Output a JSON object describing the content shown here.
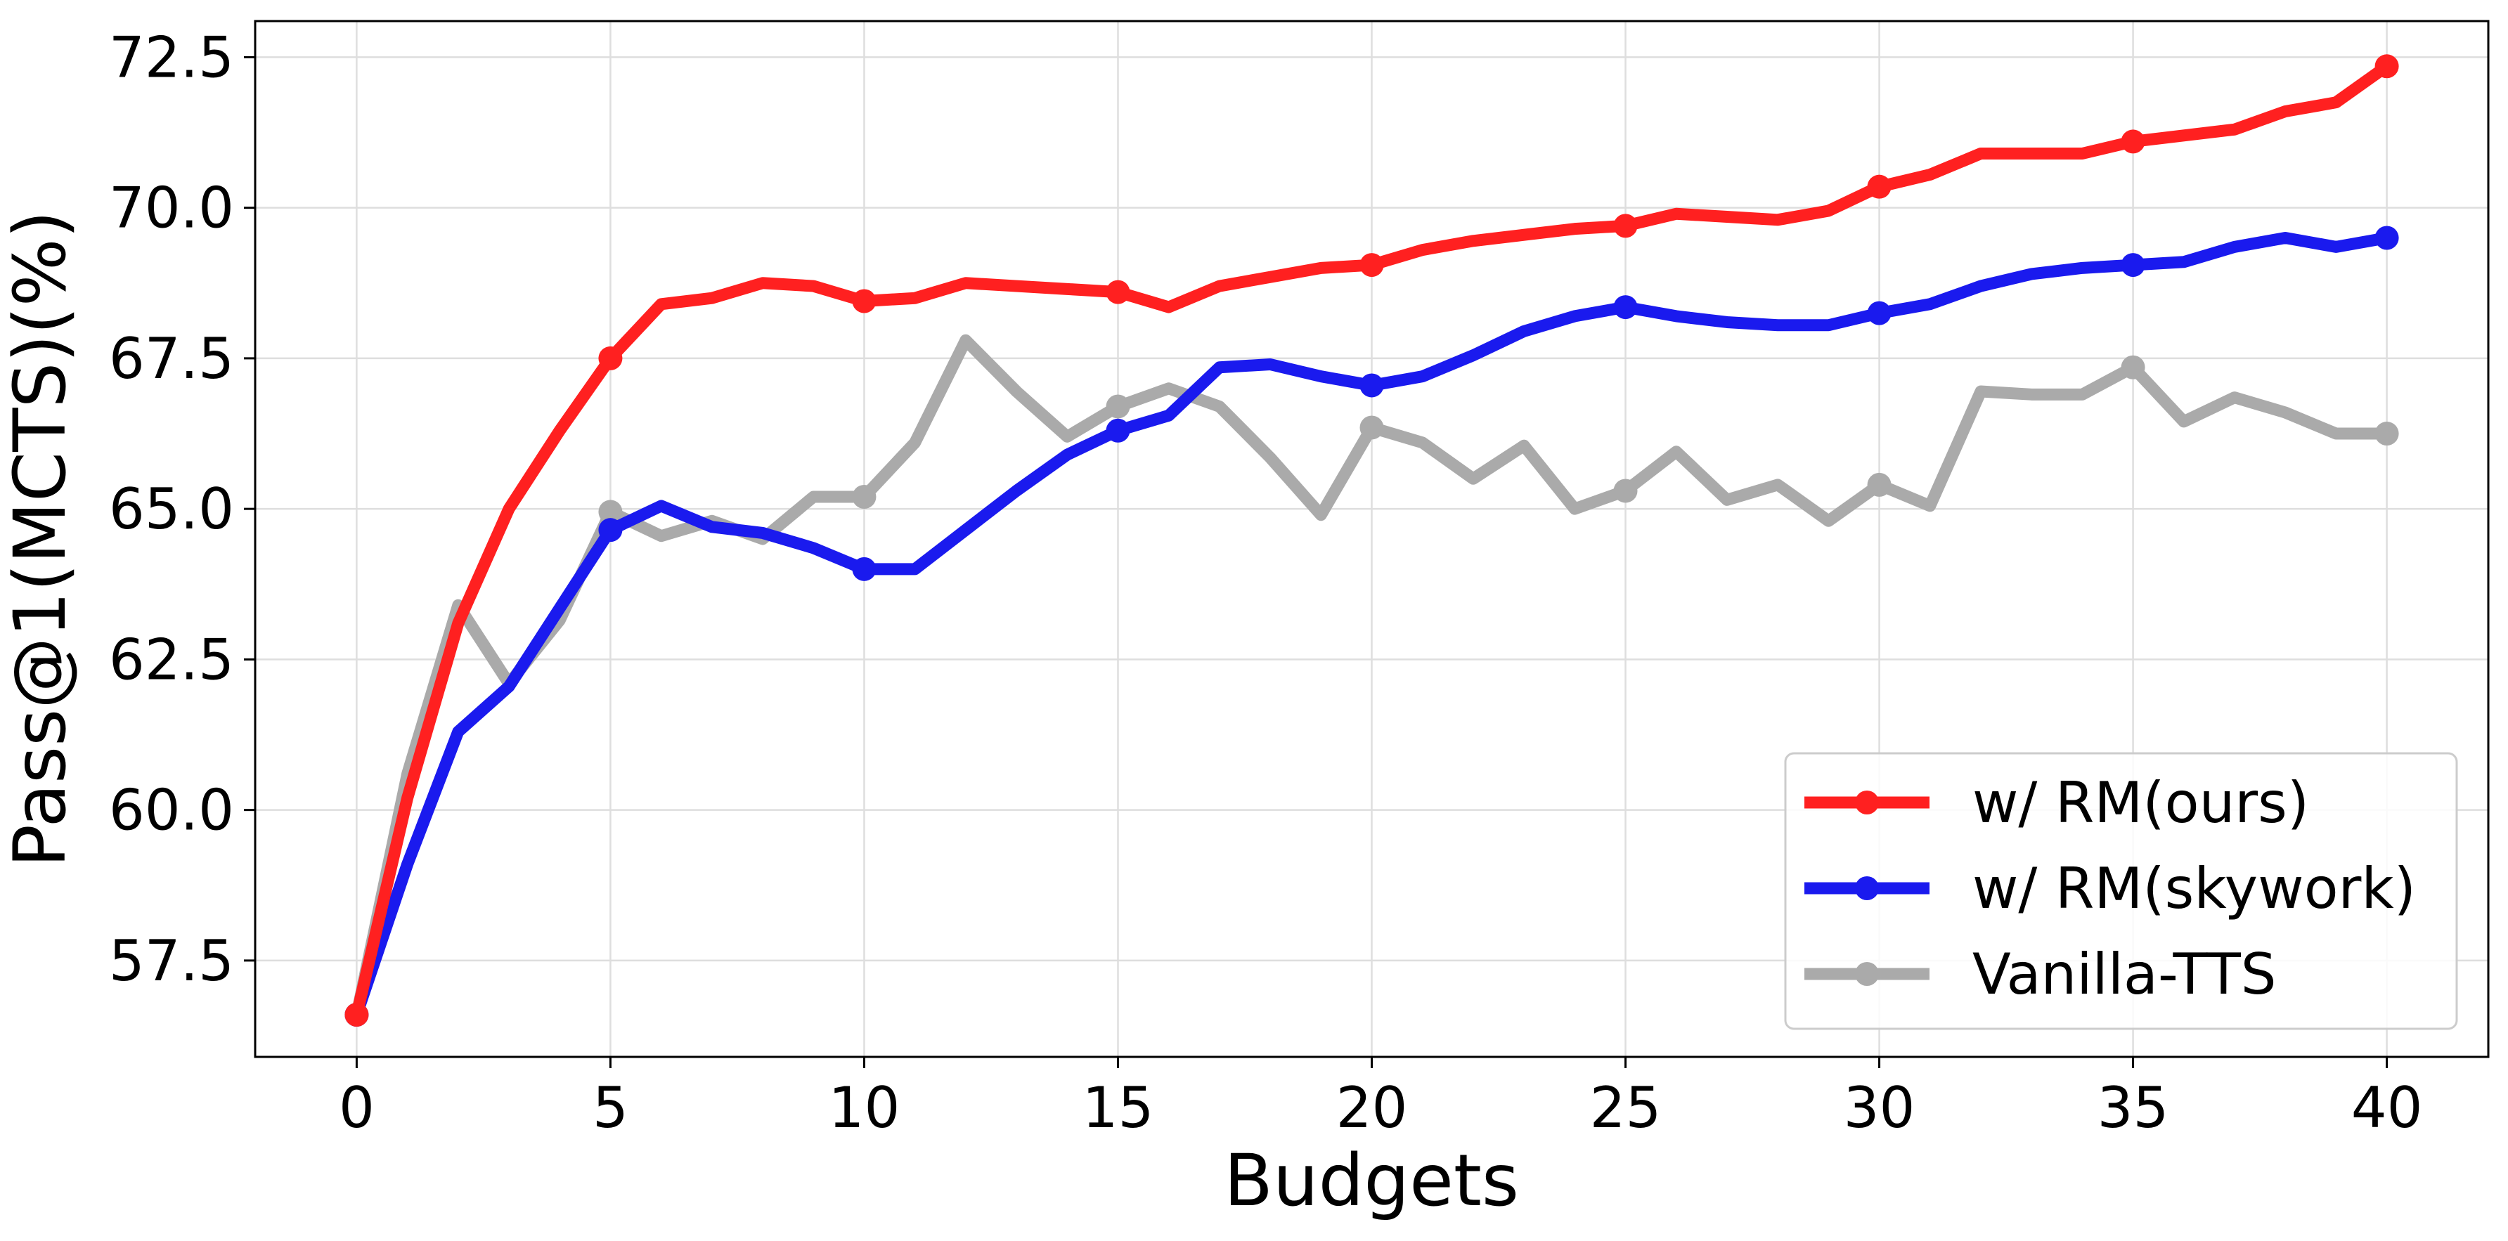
{
  "chart_data": {
    "type": "line",
    "xlabel": "Budgets",
    "ylabel": "Pass@1(MCTS)(%)",
    "xlim": [
      -2,
      42
    ],
    "ylim": [
      55.9,
      73.1
    ],
    "xticks": [
      "0",
      "5",
      "10",
      "15",
      "20",
      "25",
      "30",
      "35",
      "40"
    ],
    "yticks": [
      "57.5",
      "60.0",
      "62.5",
      "65.0",
      "67.5",
      "70.0",
      "72.5"
    ],
    "grid": true,
    "legend_position": "lower right",
    "marker_every": 5,
    "x": [
      0,
      1,
      2,
      3,
      4,
      5,
      6,
      7,
      8,
      9,
      10,
      11,
      12,
      13,
      14,
      15,
      16,
      17,
      18,
      19,
      20,
      21,
      22,
      23,
      24,
      25,
      26,
      27,
      28,
      29,
      30,
      31,
      32,
      33,
      34,
      35,
      36,
      37,
      38,
      39,
      40
    ],
    "series": [
      {
        "name": "w/ RM(ours)",
        "color": "#ff2020",
        "values": [
          56.6,
          60.2,
          63.1,
          65.0,
          66.3,
          67.5,
          68.4,
          68.5,
          68.75,
          68.7,
          68.45,
          68.5,
          68.75,
          68.7,
          68.65,
          68.6,
          68.35,
          68.7,
          68.85,
          69.0,
          69.05,
          69.3,
          69.45,
          69.55,
          69.65,
          69.7,
          69.9,
          69.85,
          69.8,
          69.95,
          70.35,
          70.55,
          70.9,
          70.9,
          70.9,
          71.1,
          71.2,
          71.3,
          71.6,
          71.75,
          72.35
        ]
      },
      {
        "name": "w/ RM(skywork)",
        "color": "#1a1aee",
        "values": [
          56.6,
          59.1,
          61.3,
          62.05,
          63.35,
          64.65,
          65.05,
          64.7,
          64.6,
          64.35,
          64.0,
          64.0,
          64.65,
          65.3,
          65.9,
          66.3,
          66.55,
          67.35,
          67.4,
          67.2,
          67.05,
          67.2,
          67.55,
          67.95,
          68.2,
          68.35,
          68.2,
          68.1,
          68.05,
          68.05,
          68.25,
          68.4,
          68.7,
          68.9,
          69.0,
          69.05,
          69.1,
          69.35,
          69.5,
          69.35,
          69.5
        ]
      },
      {
        "name": "Vanilla-TTS",
        "color": "#aaaaaa",
        "values": [
          56.6,
          60.6,
          63.4,
          62.1,
          63.15,
          64.95,
          64.55,
          64.8,
          64.5,
          65.2,
          65.2,
          66.1,
          67.8,
          66.95,
          66.2,
          66.7,
          67.0,
          66.7,
          65.85,
          64.9,
          66.35,
          66.1,
          65.5,
          66.05,
          65.0,
          65.3,
          65.95,
          65.15,
          65.4,
          64.8,
          65.4,
          65.05,
          66.95,
          66.9,
          66.9,
          67.35,
          66.45,
          66.85,
          66.6,
          66.25,
          66.25
        ]
      }
    ]
  }
}
